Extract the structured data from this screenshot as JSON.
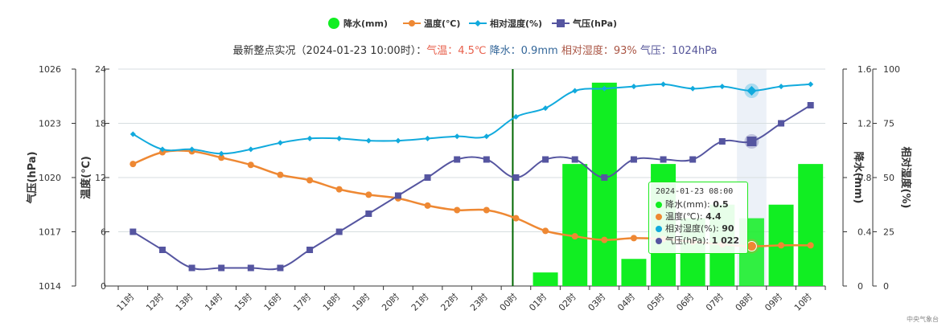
{
  "summary": {
    "prefix": "最新整点实况（2024-01-23 10:00时）：",
    "temp_label": "气温：",
    "temp_value": "4.5℃",
    "rain_label": "降水：",
    "rain_value": "0.9mm",
    "hum_label": "相对湿度：",
    "hum_value": "93%",
    "press_label": "气压：",
    "press_value": "1024hPa"
  },
  "legend": {
    "rain": "降水(mm)",
    "temp": "温度(℃)",
    "humidity": "相对湿度(%)",
    "pressure": "气压(hPa)"
  },
  "tooltip": {
    "time": "2024-01-23 08:00",
    "rain_label": "降水(mm): ",
    "rain_value": "0.5",
    "temp_label": "温度(℃): ",
    "temp_value": "4.4",
    "hum_label": "相对湿度(%): ",
    "hum_value": "90",
    "press_label": "气压(hPa): ",
    "press_value": "1 022"
  },
  "credit": "中央气象台",
  "colors": {
    "rain": "#11ee22",
    "temp": "#ee8833",
    "humidity": "#11aadd",
    "pressure": "#5555a0",
    "now_line": "#006600",
    "grid": "#d7dee0"
  },
  "chart_data": {
    "type": "combo",
    "categories": [
      "11时",
      "12时",
      "13时",
      "14时",
      "15时",
      "16时",
      "17时",
      "18时",
      "19时",
      "20时",
      "21时",
      "22时",
      "23时",
      "00时",
      "01时",
      "02时",
      "03时",
      "04时",
      "05时",
      "06时",
      "07时",
      "08时",
      "09时",
      "10时"
    ],
    "highlight_category": "08时",
    "now_marker_category": "00时",
    "series": [
      {
        "name": "降水(mm)",
        "type": "bar",
        "axis": "rain",
        "values": [
          0,
          0,
          0,
          0,
          0,
          0,
          0,
          0,
          0,
          0,
          0,
          0,
          0,
          0,
          0.1,
          0.9,
          1.5,
          0.2,
          0.9,
          0.5,
          0.6,
          0.5,
          0.6,
          0.9
        ]
      },
      {
        "name": "温度(℃)",
        "type": "line",
        "axis": "temp",
        "values": [
          13.5,
          14.8,
          14.9,
          14.2,
          13.4,
          12.3,
          11.7,
          10.7,
          10.1,
          9.7,
          8.9,
          8.4,
          8.4,
          7.5,
          6.1,
          5.5,
          5.1,
          5.3,
          5.2,
          4.9,
          4.6,
          4.4,
          4.5,
          4.5
        ]
      },
      {
        "name": "相对湿度(%)",
        "type": "line",
        "axis": "humidity",
        "values": [
          70,
          63,
          63,
          61,
          63,
          66,
          68,
          68,
          67,
          67,
          68,
          69,
          69,
          78,
          82,
          90,
          91,
          92,
          93,
          91,
          92,
          90,
          92,
          93
        ]
      },
      {
        "name": "气压(hPa)",
        "type": "line",
        "axis": "pressure",
        "values": [
          1017,
          1016,
          1015,
          1015,
          1015,
          1015,
          1016,
          1017,
          1018,
          1019,
          1020,
          1021,
          1021,
          1020,
          1021,
          1021,
          1020,
          1021,
          1021,
          1021,
          1022,
          1022,
          1023,
          1024
        ]
      }
    ],
    "axes": {
      "pressure": {
        "title": "气压(hPa)",
        "min": 1014,
        "max": 1026,
        "ticks": [
          1014,
          1017,
          1020,
          1023,
          1026
        ]
      },
      "temp": {
        "title": "温度(℃)",
        "min": 0,
        "max": 24,
        "ticks": [
          0,
          6,
          12,
          18,
          24
        ]
      },
      "rain": {
        "title": "降水(mm)",
        "min": 0,
        "max": 1.6,
        "ticks": [
          "0",
          "0.4",
          "0.8",
          "1.2",
          "1.6"
        ]
      },
      "humidity": {
        "title": "相对湿度(%)",
        "min": 0,
        "max": 100,
        "ticks": [
          0,
          25,
          50,
          75,
          100
        ]
      }
    },
    "legend_position": "top",
    "grid": true
  }
}
